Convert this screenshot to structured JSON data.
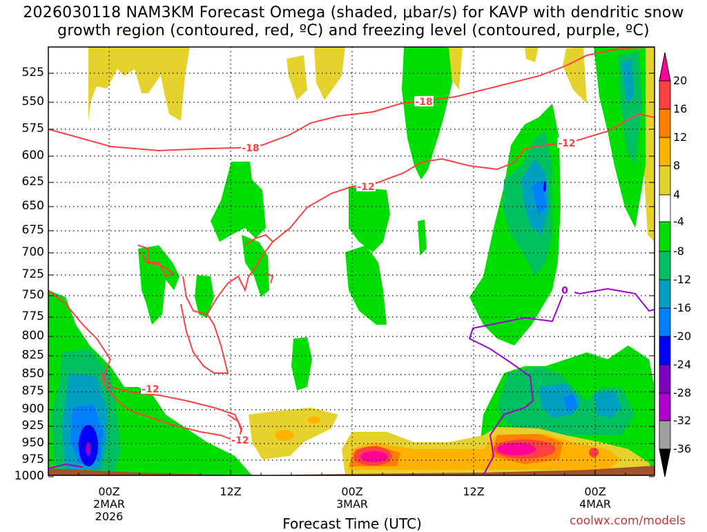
{
  "title_line1": "2026030118 NAM3KM Forecast Omega (shaded, μbar/s) for KAVP with dendritic snow",
  "title_line2": "growth region (contoured, red, ºC) and freezing level (contoured, purple, ºC)",
  "x_axis_title": "Forecast Time (UTC)",
  "credit": "coolwx.com/models",
  "colors": {
    "dgz_contour": "#ff4040",
    "freezing_contour": "#a000d0",
    "terrain": "#a0522d",
    "grid": "#000000"
  },
  "chart_data": {
    "type": "heatmap",
    "xlabel": "Forecast Time (UTC)",
    "y_ticks": [
      "525",
      "550",
      "575",
      "600",
      "625",
      "650",
      "675",
      "700",
      "725",
      "750",
      "775",
      "800",
      "825",
      "850",
      "875",
      "900",
      "925",
      "950",
      "975",
      "1000"
    ],
    "x_ticks": [
      {
        "label": "00Z",
        "sub": [
          "2MAR",
          "2026"
        ]
      },
      {
        "label": "12Z",
        "sub": []
      },
      {
        "label": "00Z",
        "sub": [
          "3MAR"
        ]
      },
      {
        "label": "12Z",
        "sub": []
      },
      {
        "label": "00Z",
        "sub": [
          "4MAR"
        ]
      }
    ],
    "colorbar": {
      "labels": [
        "20",
        "16",
        "12",
        "8",
        "4",
        "-4",
        "-8",
        "-12",
        "-16",
        "-20",
        "-24",
        "-28",
        "-32",
        "-36"
      ],
      "colors": [
        "#ff0099",
        "#ff4040",
        "#ff8000",
        "#ffb300",
        "#e6d22c",
        "#ffffff",
        "#00dd00",
        "#00c060",
        "#00a0c0",
        "#0080ff",
        "#0000ff",
        "#8000c0",
        "#b000d0",
        "#a0a0a0",
        "#000000"
      ]
    },
    "contour_labels": [
      {
        "text": "-18",
        "series": "dgz"
      },
      {
        "text": "-18",
        "series": "dgz"
      },
      {
        "text": "-12",
        "series": "dgz"
      },
      {
        "text": "-12",
        "series": "dgz"
      },
      {
        "text": "-12",
        "series": "dgz"
      },
      {
        "text": "-12",
        "series": "dgz"
      },
      {
        "text": "0",
        "series": "freezing"
      }
    ]
  }
}
